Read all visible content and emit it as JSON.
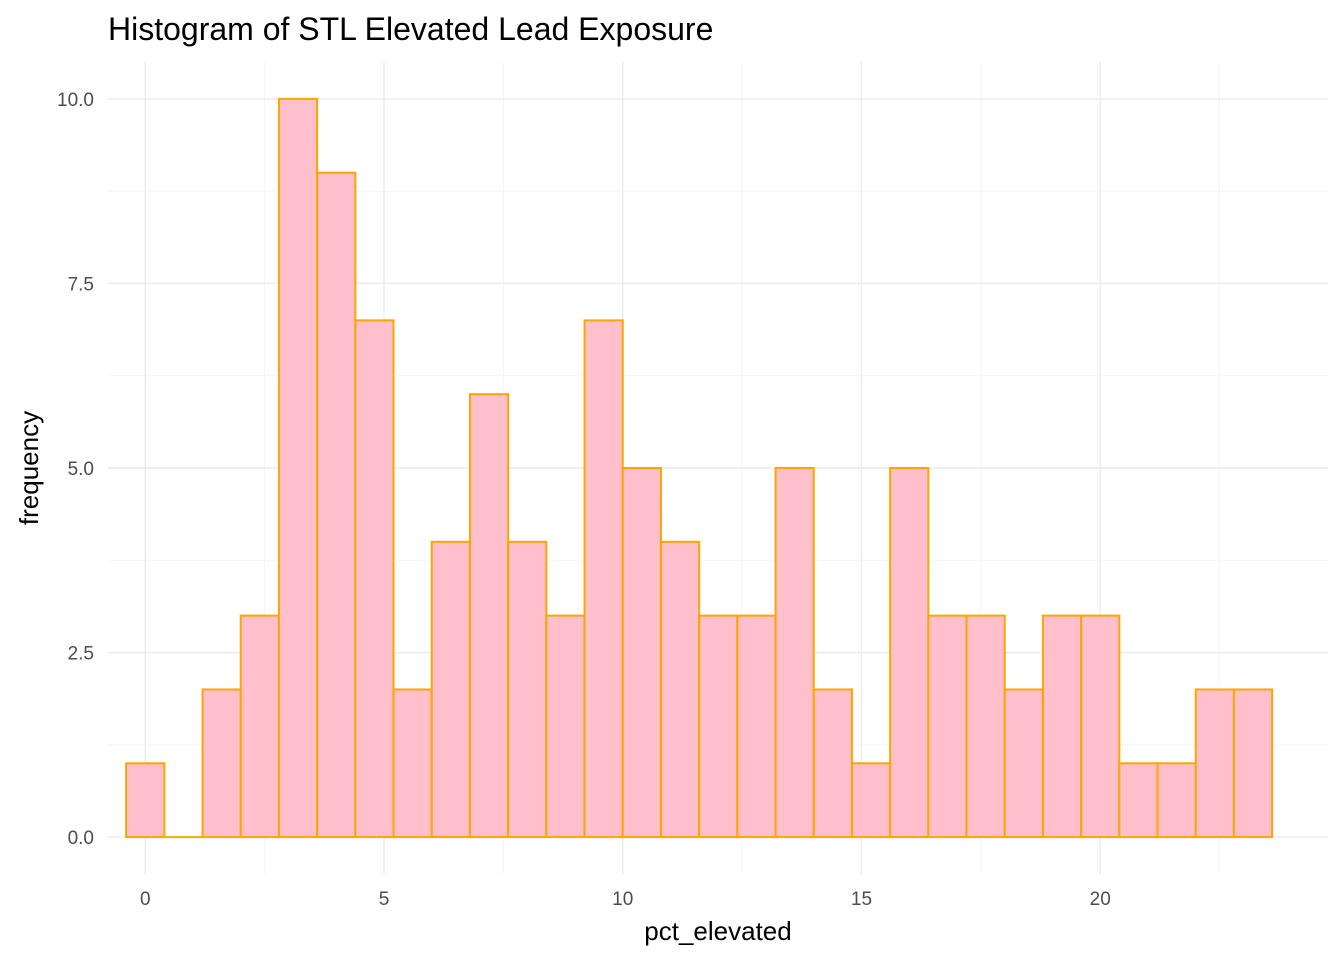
{
  "chart_data": {
    "type": "bar",
    "title": "Histogram of STL Elevated Lead Exposure",
    "xlabel": "pct_elevated",
    "ylabel": "frequency",
    "bin_width": 0.8,
    "x": [
      0.0,
      0.8,
      1.6,
      2.4,
      3.2,
      4.0,
      4.8,
      5.6,
      6.4,
      7.2,
      8.0,
      8.8,
      9.6,
      10.4,
      11.2,
      12.0,
      12.8,
      13.6,
      14.4,
      15.2,
      16.0,
      16.8,
      17.6,
      18.4,
      19.2,
      20.0,
      20.8,
      21.6,
      22.4,
      23.2
    ],
    "values": [
      1,
      0,
      2,
      3,
      10,
      9,
      7,
      2,
      4,
      6,
      4,
      3,
      7,
      5,
      4,
      3,
      3,
      5,
      2,
      1,
      5,
      3,
      3,
      2,
      3,
      3,
      1,
      1,
      2,
      2
    ],
    "xlim": [
      -0.78,
      24.77
    ],
    "ylim": [
      -0.5,
      10.5
    ],
    "x_ticks": [
      0,
      5,
      10,
      15,
      20
    ],
    "x_tick_labels": [
      "0",
      "5",
      "10",
      "15",
      "20"
    ],
    "y_ticks": [
      0,
      2.5,
      5,
      7.5,
      10
    ],
    "y_tick_labels": [
      "0.0",
      "2.5",
      "5.0",
      "7.5",
      "10.0"
    ],
    "grid": true,
    "fill_color": "#FFC0CB",
    "outline_color": "#FFA500",
    "gridline_color": "#EBEBEB"
  }
}
